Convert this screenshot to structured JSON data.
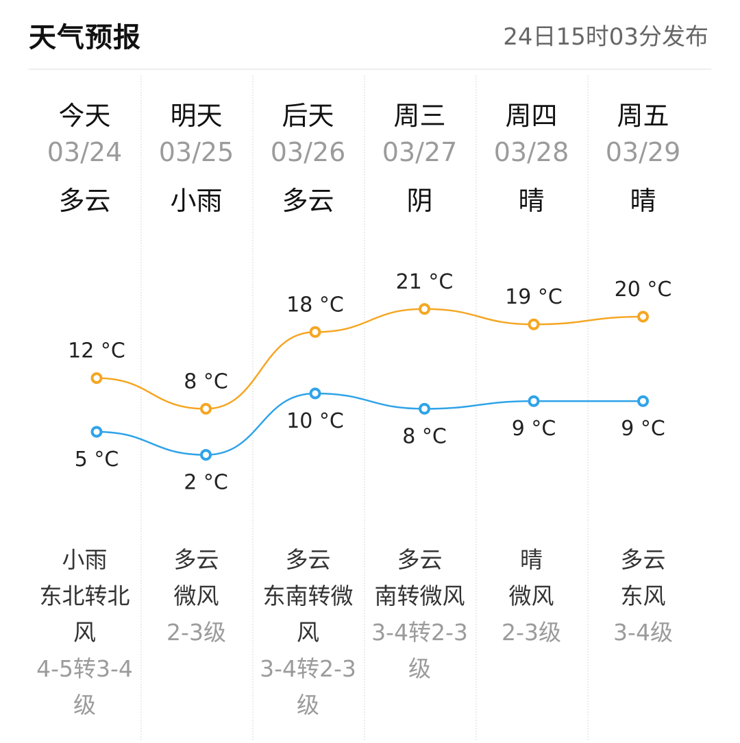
{
  "header": {
    "title": "天气预报",
    "published": "24日15时03分发布"
  },
  "days": [
    {
      "name": "今天",
      "date": "03/24",
      "day_weather": "多云",
      "night_weather": "小雨",
      "wind": "东北转北风",
      "level": "4-5转3-4级"
    },
    {
      "name": "明天",
      "date": "03/25",
      "day_weather": "小雨",
      "night_weather": "多云",
      "wind": "微风",
      "level": "2-3级"
    },
    {
      "name": "后天",
      "date": "03/26",
      "day_weather": "多云",
      "night_weather": "多云",
      "wind": "东南转微风",
      "level": "3-4转2-3级"
    },
    {
      "name": "周三",
      "date": "03/27",
      "day_weather": "阴",
      "night_weather": "多云",
      "wind": "南转微风",
      "level": "3-4转2-3级"
    },
    {
      "name": "周四",
      "date": "03/28",
      "day_weather": "晴",
      "night_weather": "晴",
      "wind": "微风",
      "level": "2-3级"
    },
    {
      "name": "周五",
      "date": "03/29",
      "day_weather": "晴",
      "night_weather": "多云",
      "wind": "东风",
      "level": "3-4级"
    }
  ],
  "chart_data": {
    "type": "line",
    "categories": [
      "03/24",
      "03/25",
      "03/26",
      "03/27",
      "03/28",
      "03/29"
    ],
    "unit": "°C",
    "series": [
      {
        "values": [
          12,
          8,
          18,
          21,
          19,
          20
        ],
        "color": "#f5a623"
      },
      {
        "values": [
          5,
          2,
          10,
          8,
          9,
          9
        ],
        "color": "#2fa3e8"
      }
    ]
  }
}
